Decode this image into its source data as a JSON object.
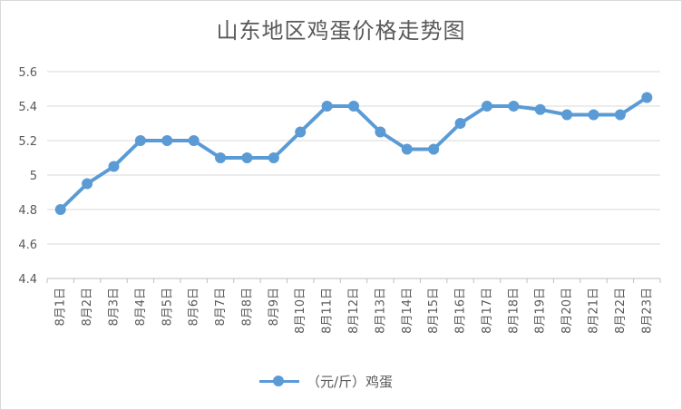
{
  "chart_data": {
    "type": "line",
    "title": "山东地区鸡蛋价格走势图",
    "categories": [
      "8月1日",
      "8月2日",
      "8月3日",
      "8月4日",
      "8月5日",
      "8月6日",
      "8月7日",
      "8月8日",
      "8月9日",
      "8月10日",
      "8月11日",
      "8月12日",
      "8月13日",
      "8月14日",
      "8月15日",
      "8月16日",
      "8月17日",
      "8月18日",
      "8月19日",
      "8月20日",
      "8月21日",
      "8月22日",
      "8月23日"
    ],
    "series": [
      {
        "name": "（元/斤）鸡蛋",
        "values": [
          4.8,
          4.95,
          5.05,
          5.2,
          5.2,
          5.2,
          5.1,
          5.1,
          5.1,
          5.25,
          5.4,
          5.4,
          5.25,
          5.15,
          5.15,
          5.3,
          5.4,
          5.4,
          5.38,
          5.35,
          5.35,
          5.35,
          5.45
        ],
        "color": "#5b9bd5"
      }
    ],
    "ylim": [
      4.4,
      5.6
    ],
    "yticks": [
      "4.4",
      "4.6",
      "4.8",
      "5",
      "5.2",
      "5.4",
      "5.6"
    ],
    "grid": true,
    "legend": "bottom"
  }
}
